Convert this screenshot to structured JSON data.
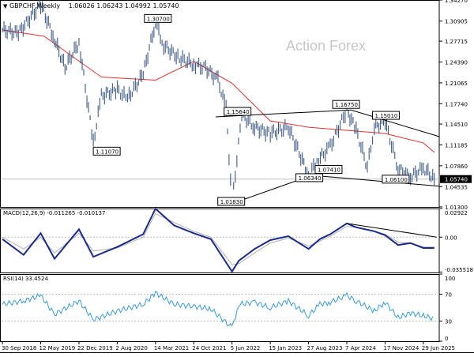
{
  "header": {
    "symbol": "GBPCHF,Weekly",
    "ohlc": "1.06026 1.06243 1.04992 1.05740"
  },
  "watermark": "Action Forex",
  "price_axis": {
    "ticks": [
      "1.34270",
      "1.30905",
      "1.27715",
      "1.24390",
      "1.21065",
      "1.17740",
      "1.14510",
      "1.11185",
      "1.07860",
      "1.04535",
      "1.01300"
    ],
    "current_price": "1.05740"
  },
  "annotations": [
    "1.30700",
    "1.11070",
    "1.15640",
    "1.16750",
    "1.15010",
    "1.06340",
    "1.07410",
    "1.06100",
    "1.01830"
  ],
  "macd": {
    "label": "MACD(12,26,9) -0.011265 -0.010137",
    "ticks": [
      "0.02922",
      "0.00",
      "-0.035518"
    ]
  },
  "rsi": {
    "label": "RSI(14) 33.4524",
    "ticks": [
      "100",
      "70",
      "30",
      "0"
    ]
  },
  "time_axis": [
    "30 Sep 2018",
    "12 May 2019",
    "22 Dec 2019",
    "2 Aug 2020",
    "14 Mar 2021",
    "24 Oct 2021",
    "5 Jun 2022",
    "15 Jan 2023",
    "27 Aug 2023",
    "7 Apr 2024",
    "17 Nov 2024",
    "29 Jun 2025"
  ],
  "chart_data": [
    {
      "type": "line",
      "title": "GBPCHF,Weekly",
      "x": [
        "2018-09-30",
        "2019-01-01",
        "2019-05-12",
        "2019-08-01",
        "2019-10-01",
        "2019-12-22",
        "2020-03-15",
        "2020-05-01",
        "2020-08-02",
        "2020-10-01",
        "2021-01-01",
        "2021-03-14",
        "2021-05-01",
        "2021-08-01",
        "2021-10-24",
        "2022-01-01",
        "2022-03-15",
        "2022-05-01",
        "2022-06-05",
        "2022-08-01",
        "2022-10-15",
        "2023-01-15",
        "2023-05-01",
        "2023-08-27",
        "2023-10-15",
        "2024-01-01",
        "2024-04-07",
        "2024-06-01",
        "2024-08-05",
        "2024-09-15",
        "2024-11-17",
        "2025-02-01",
        "2025-04-15",
        "2025-06-29",
        "2025-09-01"
      ],
      "close": [
        1.295,
        1.29,
        1.336,
        1.28,
        1.235,
        1.275,
        1.115,
        1.19,
        1.2,
        1.185,
        1.225,
        1.307,
        1.27,
        1.25,
        1.24,
        1.235,
        1.215,
        1.17,
        1.0183,
        1.16,
        1.14,
        1.13,
        1.14,
        1.0634,
        1.085,
        1.11,
        1.1675,
        1.135,
        1.076,
        1.14,
        1.1501,
        1.0741,
        1.061,
        1.075,
        1.0574
      ],
      "series_lines": [
        {
          "name": "MA",
          "x": [
            "2018-09-30",
            "2019-06-01",
            "2020-05-01",
            "2021-03-14",
            "2021-10-24",
            "2022-06-05",
            "2023-01-15",
            "2023-08-27",
            "2024-04-07",
            "2024-11-17",
            "2025-06-29",
            "2025-09-01"
          ],
          "values": [
            1.295,
            1.285,
            1.22,
            1.215,
            1.245,
            1.21,
            1.15,
            1.14,
            1.135,
            1.13,
            1.115,
            1.1
          ]
        }
      ],
      "trendlines": [
        {
          "from": [
            "2022-03-01",
            1.1564
          ],
          "to": [
            "2024-05-01",
            1.1675
          ]
        },
        {
          "from": [
            "2024-05-01",
            1.1675
          ],
          "to": [
            "2025-10-01",
            1.125
          ]
        },
        {
          "from": [
            "2022-06-05",
            1.0183
          ],
          "to": [
            "2023-09-15",
            1.0634
          ]
        },
        {
          "from": [
            "2023-09-15",
            1.0634
          ],
          "to": [
            "2025-10-01",
            1.046
          ]
        }
      ],
      "ylim": [
        1.013,
        1.3427
      ],
      "grid": false
    },
    {
      "type": "line",
      "title": "MACD(12,26,9) -0.011265 -0.010137",
      "x": [
        "2018-09-30",
        "2019-02-01",
        "2019-05-12",
        "2019-08-01",
        "2019-12-22",
        "2020-03-15",
        "2020-08-02",
        "2021-01-01",
        "2021-03-14",
        "2021-07-01",
        "2021-10-24",
        "2022-02-01",
        "2022-06-05",
        "2022-07-15",
        "2022-10-15",
        "2023-01-15",
        "2023-05-01",
        "2023-08-27",
        "2023-11-01",
        "2024-01-01",
        "2024-04-07",
        "2024-06-01",
        "2024-09-15",
        "2024-11-17",
        "2025-02-01",
        "2025-04-15",
        "2025-06-29",
        "2025-09-01"
      ],
      "series": [
        {
          "name": "MACD",
          "values": [
            -0.002,
            -0.018,
            0.004,
            -0.022,
            0.008,
            -0.02,
            -0.01,
            0.003,
            0.029,
            0.012,
            0.004,
            -0.002,
            -0.035,
            -0.024,
            -0.012,
            -0.003,
            0.001,
            -0.012,
            -0.002,
            0.003,
            0.014,
            0.01,
            0.006,
            0.002,
            -0.008,
            -0.006,
            -0.011,
            -0.011
          ]
        },
        {
          "name": "Signal",
          "values": [
            0.0,
            -0.012,
            0.0,
            -0.016,
            0.004,
            -0.014,
            -0.011,
            0.0,
            0.024,
            0.015,
            0.006,
            0.0,
            -0.028,
            -0.027,
            -0.016,
            -0.006,
            -0.001,
            -0.009,
            -0.004,
            0.001,
            0.011,
            0.01,
            0.006,
            0.003,
            -0.005,
            -0.006,
            -0.01,
            -0.01
          ]
        }
      ],
      "ylim": [
        -0.036,
        0.0292
      ]
    },
    {
      "type": "line",
      "title": "RSI(14) 33.4524",
      "x": [
        "2018-09-30",
        "2019-02-01",
        "2019-05-12",
        "2019-08-01",
        "2019-12-22",
        "2020-03-15",
        "2020-08-02",
        "2021-01-01",
        "2021-03-14",
        "2021-07-01",
        "2021-10-24",
        "2022-02-01",
        "2022-06-05",
        "2022-07-15",
        "2022-10-15",
        "2023-01-15",
        "2023-05-01",
        "2023-08-27",
        "2023-11-01",
        "2024-01-01",
        "2024-04-07",
        "2024-06-01",
        "2024-09-15",
        "2024-11-17",
        "2025-02-01",
        "2025-04-15",
        "2025-06-29",
        "2025-09-01"
      ],
      "series": [
        {
          "name": "RSI",
          "values": [
            55,
            60,
            68,
            40,
            60,
            32,
            45,
            55,
            72,
            55,
            52,
            48,
            20,
            55,
            58,
            50,
            60,
            38,
            55,
            58,
            68,
            60,
            45,
            58,
            35,
            42,
            38,
            33.4
          ]
        }
      ],
      "ylim": [
        0,
        100
      ],
      "levels": [
        70,
        30
      ]
    }
  ]
}
